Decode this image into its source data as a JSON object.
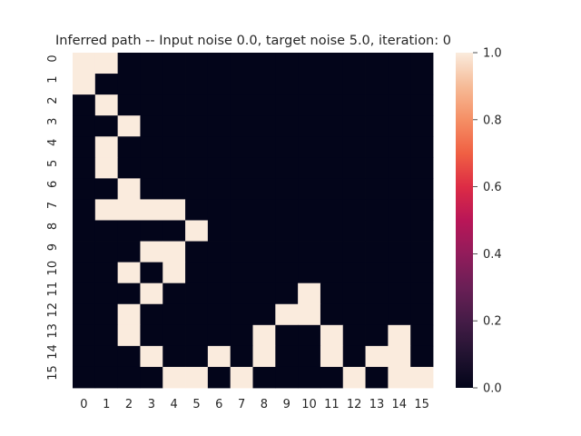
{
  "chart_data": {
    "type": "heatmap",
    "title": "Inferred path -- Input noise 0.0, target noise 5.0, iteration: 0",
    "xlabel": "",
    "ylabel": "",
    "x_tick_labels": [
      "0",
      "1",
      "2",
      "3",
      "4",
      "5",
      "6",
      "7",
      "8",
      "9",
      "10",
      "11",
      "12",
      "13",
      "14",
      "15"
    ],
    "y_tick_labels": [
      "0",
      "1",
      "2",
      "3",
      "4",
      "5",
      "6",
      "7",
      "8",
      "9",
      "10",
      "11",
      "12",
      "13",
      "14",
      "15"
    ],
    "matrix": [
      [
        1,
        1,
        0,
        0,
        0,
        0,
        0,
        0,
        0,
        0,
        0,
        0,
        0,
        0,
        0,
        0
      ],
      [
        1,
        0,
        0,
        0,
        0,
        0,
        0,
        0,
        0,
        0,
        0,
        0,
        0,
        0,
        0,
        0
      ],
      [
        0,
        1,
        0,
        0,
        0,
        0,
        0,
        0,
        0,
        0,
        0,
        0,
        0,
        0,
        0,
        0
      ],
      [
        0,
        0,
        1,
        0,
        0,
        0,
        0,
        0,
        0,
        0,
        0,
        0,
        0,
        0,
        0,
        0
      ],
      [
        0,
        1,
        0,
        0,
        0,
        0,
        0,
        0,
        0,
        0,
        0,
        0,
        0,
        0,
        0,
        0
      ],
      [
        0,
        1,
        0,
        0,
        0,
        0,
        0,
        0,
        0,
        0,
        0,
        0,
        0,
        0,
        0,
        0
      ],
      [
        0,
        0,
        1,
        0,
        0,
        0,
        0,
        0,
        0,
        0,
        0,
        0,
        0,
        0,
        0,
        0
      ],
      [
        0,
        1,
        1,
        1,
        1,
        0,
        0,
        0,
        0,
        0,
        0,
        0,
        0,
        0,
        0,
        0
      ],
      [
        0,
        0,
        0,
        0,
        0,
        1,
        0,
        0,
        0,
        0,
        0,
        0,
        0,
        0,
        0,
        0
      ],
      [
        0,
        0,
        0,
        1,
        1,
        0,
        0,
        0,
        0,
        0,
        0,
        0,
        0,
        0,
        0,
        0
      ],
      [
        0,
        0,
        1,
        0,
        1,
        0,
        0,
        0,
        0,
        0,
        0,
        0,
        0,
        0,
        0,
        0
      ],
      [
        0,
        0,
        0,
        1,
        0,
        0,
        0,
        0,
        0,
        0,
        1,
        0,
        0,
        0,
        0,
        0
      ],
      [
        0,
        0,
        1,
        0,
        0,
        0,
        0,
        0,
        0,
        1,
        1,
        0,
        0,
        0,
        0,
        0
      ],
      [
        0,
        0,
        1,
        0,
        0,
        0,
        0,
        0,
        1,
        0,
        0,
        1,
        0,
        0,
        1,
        0
      ],
      [
        0,
        0,
        0,
        1,
        0,
        0,
        1,
        0,
        1,
        0,
        0,
        1,
        0,
        1,
        1,
        0
      ],
      [
        0,
        0,
        0,
        0,
        1,
        1,
        0,
        1,
        0,
        0,
        0,
        0,
        1,
        0,
        1,
        1
      ]
    ],
    "colorbar": {
      "min": 0.0,
      "max": 1.0,
      "ticks": [
        "0.0",
        "0.2",
        "0.4",
        "0.6",
        "0.8",
        "1.0"
      ],
      "colormap": "rocket",
      "low_color": "#03051a",
      "high_color": "#faebdd"
    },
    "grid": false
  }
}
